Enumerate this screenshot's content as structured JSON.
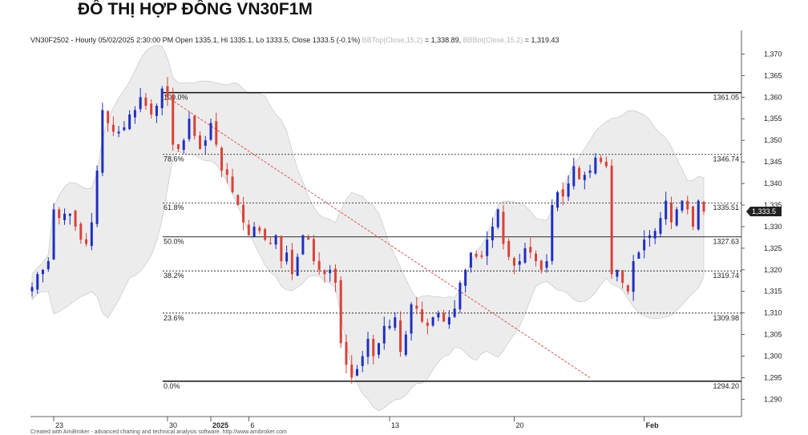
{
  "title": "ĐỒ THỊ HỢP ĐỒNG VN30F1M",
  "footer": "Created with AmiBroker - advanced charting and technical analysis software. http://www.amibroker.com",
  "colors": {
    "up": "#1f2fbf",
    "down": "#d9423a",
    "band_fill": "#ececec",
    "band_edge": "#c8c8c8",
    "trend": "#e05050",
    "last_badge": "#222222"
  },
  "chart_data": {
    "type": "candlestick",
    "header": {
      "main": "VN30F2502 - Hourly 05/02/2025 2:30:00 PM Open 1335.1, Hi 1335.1, Lo 1333.5, Close 1333.5 (-0.1%)",
      "bbtop_label": "BBTop(Close,15,2)",
      "bbtop_value": "= 1,338.89,",
      "bbbot_label": "BBBot(Close,15,2)",
      "bbbot_value": "= 1,319.43"
    },
    "ylim": [
      1286,
      1371
    ],
    "y_ticks": [
      "1,290",
      "1,295",
      "1,300",
      "1,305",
      "1,310",
      "1,315",
      "1,320",
      "1,325",
      "1,330",
      "1,335",
      "1,340",
      "1,345",
      "1,350",
      "1,355",
      "1,360",
      "1,365",
      "1,370"
    ],
    "x_ticks": [
      {
        "label": "23",
        "index": 4,
        "bold": false
      },
      {
        "label": "30",
        "index": 25,
        "bold": false
      },
      {
        "label": "2025",
        "index": 33,
        "bold": true
      },
      {
        "label": "6",
        "index": 40,
        "bold": false
      },
      {
        "label": "13",
        "index": 66,
        "bold": false
      },
      {
        "label": "20",
        "index": 89,
        "bold": false
      },
      {
        "label": "Feb",
        "index": 113,
        "bold": true
      }
    ],
    "last_price": {
      "label": "1,333.5",
      "value": 1333.5
    },
    "fib_levels": [
      {
        "pct": "100.0%",
        "value": 1361.05,
        "label": "1361.05",
        "style": "solid-bold"
      },
      {
        "pct": "78.6%",
        "value": 1346.74,
        "label": "1346.74",
        "style": "dotted"
      },
      {
        "pct": "61.8%",
        "value": 1335.51,
        "label": "1335.51",
        "style": "dotted"
      },
      {
        "pct": "50.0%",
        "value": 1327.63,
        "label": "1327.63",
        "style": "solid"
      },
      {
        "pct": "38.2%",
        "value": 1319.74,
        "label": "1319.74",
        "style": "dotted"
      },
      {
        "pct": "23.6%",
        "value": 1309.98,
        "label": "1309.98",
        "style": "dotted"
      },
      {
        "pct": "0.0%",
        "value": 1294.2,
        "label": "1294.20",
        "style": "solid-bold"
      }
    ],
    "trendline": {
      "from": {
        "index": 25,
        "value": 1360
      },
      "to": {
        "index": 103,
        "value": 1295
      }
    },
    "closes": [
      1316,
      1319,
      1320,
      1322,
      1334,
      1332,
      1333,
      1333,
      1330,
      1327,
      1326,
      1331,
      1343,
      1357,
      1354,
      1352,
      1352,
      1353,
      1356,
      1357,
      1360,
      1358,
      1356,
      1358,
      1362,
      1360,
      1349,
      1348,
      1350,
      1355,
      1351,
      1348,
      1350,
      1354,
      1349,
      1343,
      1342,
      1338,
      1335,
      1331,
      1328,
      1330,
      1329,
      1327,
      1326,
      1328,
      1322,
      1324,
      1319,
      1323,
      1328,
      1327,
      1322,
      1320,
      1319,
      1320,
      1317,
      1303,
      1298,
      1295,
      1297,
      1300,
      1304,
      1300,
      1303,
      1307,
      1307,
      1309,
      1301,
      1305,
      1312,
      1311,
      1308,
      1307,
      1309,
      1310,
      1308,
      1309,
      1311,
      1317,
      1320,
      1324,
      1323,
      1323,
      1327,
      1330,
      1334,
      1326,
      1323,
      1321,
      1322,
      1325,
      1324,
      1322,
      1320,
      1322,
      1335,
      1338,
      1337,
      1340,
      1344,
      1341,
      1342,
      1343,
      1346,
      1345,
      1344,
      1319,
      1320,
      1317,
      1315,
      1322,
      1324,
      1327,
      1328,
      1329,
      1332,
      1336,
      1331,
      1334,
      1336,
      1334,
      1330,
      1336,
      1333.5
    ],
    "candles_note": "OHLC generated deterministically from closes in script"
  }
}
